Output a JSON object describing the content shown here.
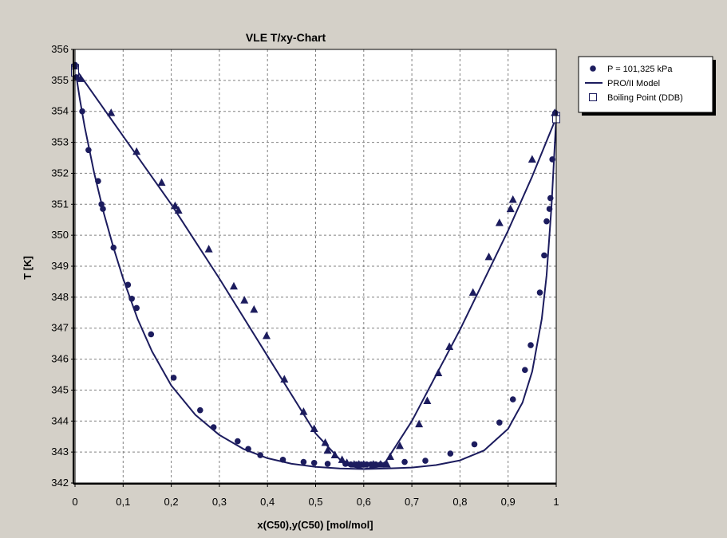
{
  "chart_data": {
    "type": "scatter",
    "title": "VLE T/xy-Chart",
    "xlabel": "x(C50),y(C50) [mol/mol]",
    "ylabel": "T [K]",
    "xlim": [
      0,
      1
    ],
    "ylim": [
      342,
      356
    ],
    "xticks": [
      "0",
      "0,1",
      "0,2",
      "0,3",
      "0,4",
      "0,5",
      "0,6",
      "0,7",
      "0,8",
      "0,9",
      "1"
    ],
    "yticks": [
      "342",
      "343",
      "344",
      "345",
      "346",
      "347",
      "348",
      "349",
      "350",
      "351",
      "352",
      "353",
      "354",
      "355",
      "356"
    ],
    "grid": true,
    "legend_position": "top-right",
    "colors": {
      "series": "#1c1c5e",
      "background": "#d4d0c8",
      "plot": "#ffffff",
      "grid": "#808080"
    },
    "series": [
      {
        "name": "P = 101,325 kPa",
        "marker": "circle",
        "points": [
          [
            0,
            355.45
          ],
          [
            0,
            355.5
          ],
          [
            0.003,
            355.1
          ],
          [
            0.015,
            354.0
          ],
          [
            0.028,
            352.75
          ],
          [
            0.048,
            351.75
          ],
          [
            0.055,
            351.0
          ],
          [
            0.058,
            350.85
          ],
          [
            0.08,
            349.6
          ],
          [
            0.11,
            348.4
          ],
          [
            0.118,
            347.95
          ],
          [
            0.128,
            347.65
          ],
          [
            0.158,
            346.8
          ],
          [
            0.205,
            345.4
          ],
          [
            0.26,
            344.35
          ],
          [
            0.288,
            343.8
          ],
          [
            0.338,
            343.35
          ],
          [
            0.36,
            343.1
          ],
          [
            0.385,
            342.9
          ],
          [
            0.432,
            342.75
          ],
          [
            0.475,
            342.68
          ],
          [
            0.497,
            342.65
          ],
          [
            0.525,
            342.62
          ],
          [
            0.562,
            342.62
          ],
          [
            0.573,
            342.6
          ],
          [
            0.585,
            342.6
          ],
          [
            0.595,
            342.6
          ],
          [
            0.606,
            342.6
          ],
          [
            0.615,
            342.6
          ],
          [
            0.625,
            342.6
          ],
          [
            0.635,
            342.6
          ],
          [
            0.645,
            342.6
          ],
          [
            0.685,
            342.68
          ],
          [
            0.728,
            342.72
          ],
          [
            0.78,
            342.95
          ],
          [
            0.83,
            343.25
          ],
          [
            0.882,
            343.95
          ],
          [
            0.91,
            344.7
          ],
          [
            0.935,
            345.65
          ],
          [
            0.947,
            346.45
          ],
          [
            0.966,
            348.15
          ],
          [
            0.975,
            349.35
          ],
          [
            0.98,
            350.45
          ],
          [
            0.986,
            350.85
          ],
          [
            0.988,
            351.2
          ],
          [
            0.992,
            352.45
          ],
          [
            0.998,
            353.95
          ]
        ]
      },
      {
        "name": "",
        "marker": "triangle",
        "points": [
          [
            0.012,
            355.05
          ],
          [
            0.075,
            353.95
          ],
          [
            0.128,
            352.7
          ],
          [
            0.18,
            351.7
          ],
          [
            0.208,
            350.95
          ],
          [
            0.215,
            350.8
          ],
          [
            0.278,
            349.55
          ],
          [
            0.33,
            348.35
          ],
          [
            0.352,
            347.9
          ],
          [
            0.372,
            347.6
          ],
          [
            0.398,
            346.75
          ],
          [
            0.435,
            345.35
          ],
          [
            0.475,
            344.3
          ],
          [
            0.497,
            343.75
          ],
          [
            0.52,
            343.3
          ],
          [
            0.525,
            343.05
          ],
          [
            0.54,
            342.9
          ],
          [
            0.555,
            342.75
          ],
          [
            0.565,
            342.65
          ],
          [
            0.58,
            342.6
          ],
          [
            0.59,
            342.6
          ],
          [
            0.6,
            342.6
          ],
          [
            0.62,
            342.6
          ],
          [
            0.635,
            342.6
          ],
          [
            0.648,
            342.6
          ],
          [
            0.655,
            342.85
          ],
          [
            0.675,
            343.2
          ],
          [
            0.715,
            343.9
          ],
          [
            0.732,
            344.65
          ],
          [
            0.755,
            345.55
          ],
          [
            0.778,
            346.4
          ],
          [
            0.827,
            348.15
          ],
          [
            0.86,
            349.3
          ],
          [
            0.882,
            350.4
          ],
          [
            0.905,
            350.85
          ],
          [
            0.91,
            351.15
          ],
          [
            0.95,
            352.45
          ],
          [
            0.997,
            353.95
          ]
        ]
      },
      {
        "name": "PRO/II Model",
        "marker": "line",
        "bubble_curve": [
          [
            0,
            355.4
          ],
          [
            0.01,
            354.4
          ],
          [
            0.02,
            353.5
          ],
          [
            0.04,
            352.0
          ],
          [
            0.06,
            350.7
          ],
          [
            0.08,
            349.6
          ],
          [
            0.1,
            348.6
          ],
          [
            0.13,
            347.3
          ],
          [
            0.16,
            346.25
          ],
          [
            0.2,
            345.15
          ],
          [
            0.25,
            344.2
          ],
          [
            0.3,
            343.55
          ],
          [
            0.35,
            343.1
          ],
          [
            0.4,
            342.8
          ],
          [
            0.45,
            342.62
          ],
          [
            0.5,
            342.52
          ],
          [
            0.55,
            342.47
          ],
          [
            0.6,
            342.45
          ],
          [
            0.65,
            342.47
          ],
          [
            0.7,
            342.5
          ],
          [
            0.75,
            342.58
          ],
          [
            0.8,
            342.73
          ],
          [
            0.85,
            343.05
          ],
          [
            0.9,
            343.75
          ],
          [
            0.93,
            344.6
          ],
          [
            0.95,
            345.6
          ],
          [
            0.97,
            347.3
          ],
          [
            0.98,
            348.7
          ],
          [
            0.99,
            350.9
          ],
          [
            1.0,
            353.8
          ]
        ],
        "dew_curve": [
          [
            0,
            355.4
          ],
          [
            0.1,
            353.2
          ],
          [
            0.2,
            351.0
          ],
          [
            0.3,
            348.6
          ],
          [
            0.4,
            346.1
          ],
          [
            0.5,
            343.6
          ],
          [
            0.56,
            342.6
          ],
          [
            0.6,
            342.45
          ],
          [
            0.64,
            342.55
          ],
          [
            0.7,
            344.0
          ],
          [
            0.8,
            346.95
          ],
          [
            0.9,
            350.15
          ],
          [
            0.95,
            351.9
          ],
          [
            1.0,
            353.8
          ]
        ]
      },
      {
        "name": "Boiling Point (DDB)",
        "marker": "square",
        "points": [
          [
            0,
            355.4
          ],
          [
            0,
            355.25
          ],
          [
            1.0,
            353.85
          ],
          [
            1.0,
            353.75
          ]
        ]
      }
    ]
  }
}
